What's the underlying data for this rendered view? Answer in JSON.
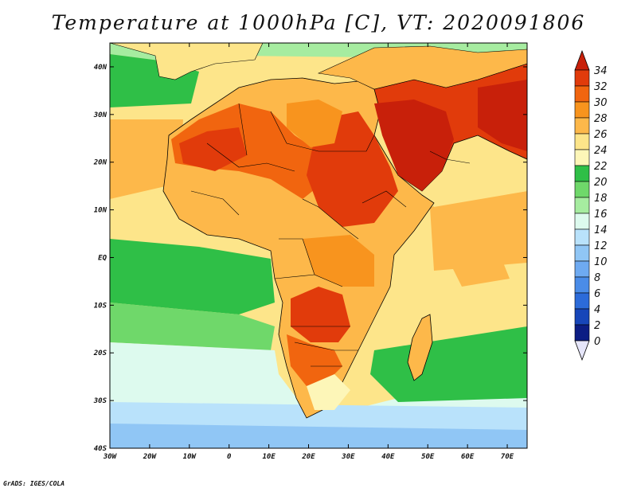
{
  "title": "Temperature at 1000hPa [C], VT: 2020091806",
  "credit": "GrADS: IGES/COLA",
  "map": {
    "lon_range": [
      -30,
      75
    ],
    "lat_range": [
      -40,
      45
    ],
    "lon_ticks": [
      "30W",
      "20W",
      "10W",
      "0",
      "10E",
      "20E",
      "30E",
      "40E",
      "50E",
      "60E",
      "70E"
    ],
    "lat_ticks": [
      "40N",
      "30N",
      "20N",
      "10N",
      "EQ",
      "10S",
      "20S",
      "30S",
      "40S"
    ]
  },
  "colorbar": {
    "labels": [
      "34",
      "32",
      "30",
      "28",
      "26",
      "24",
      "22",
      "20",
      "18",
      "16",
      "14",
      "12",
      "10",
      "8",
      "6",
      "4",
      "2",
      "0"
    ],
    "colors_top_to_bottom": [
      "#c8200a",
      "#e13b0b",
      "#f1650f",
      "#f8941e",
      "#fdb84a",
      "#fde58a",
      "#fdf6b8",
      "#2fbf47",
      "#6fd86a",
      "#a6eca0",
      "#ddfaee",
      "#b9e2fb",
      "#90c6f5",
      "#6eaaf1",
      "#4a8ce8",
      "#2c6bd9",
      "#1746b9",
      "#0c1d84",
      "#e6e6fa"
    ]
  },
  "colors": {
    "ocean_warm": "#fdb84a",
    "ocean_mild": "#fde58a",
    "ocean_green": "#2fbf47",
    "ocean_cool": "#a6eca0",
    "ocean_cold": "#90c6f5",
    "land_hot": "#e13b0b",
    "land_warm": "#f1650f",
    "outline": "#000000"
  }
}
